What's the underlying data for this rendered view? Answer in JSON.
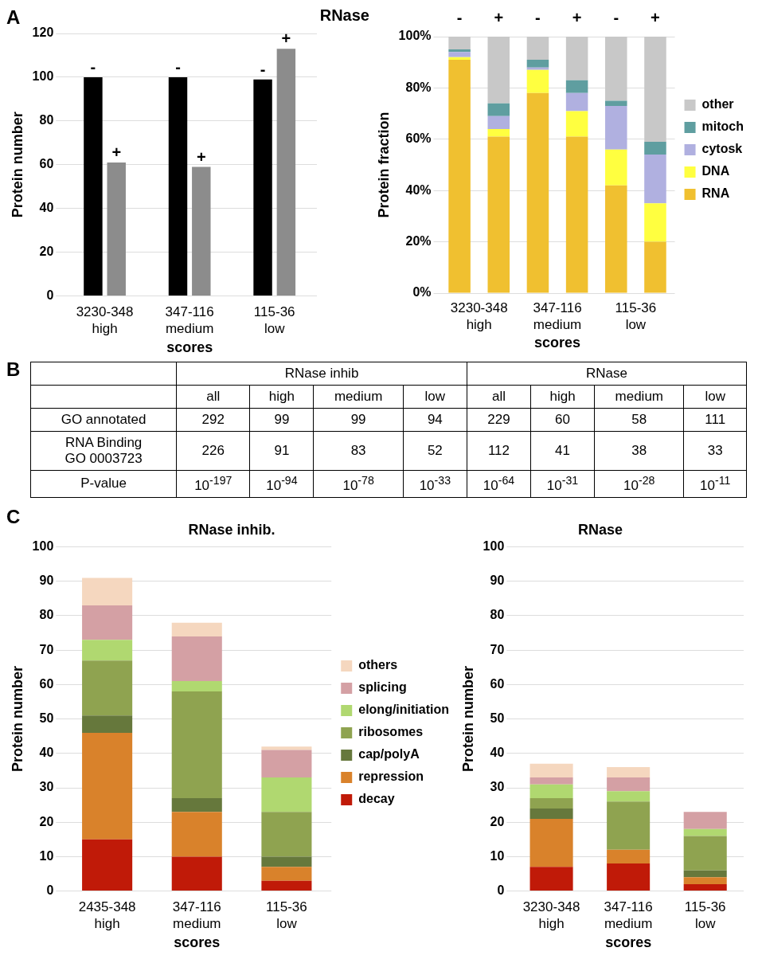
{
  "chart_data": [
    {
      "type": "bar",
      "ylabel": "Protein number",
      "xlabel": "scores",
      "legend_title": "RNase",
      "annotations": [
        "A"
      ],
      "categories": [
        "3230-348\nhigh",
        "347-116\nmedium",
        "115-36\nlow"
      ],
      "ylim": [
        0,
        120
      ],
      "yticks": [
        0,
        20,
        40,
        60,
        80,
        100,
        120
      ],
      "grid": "y",
      "series": [
        {
          "name": "-",
          "color": "#000000",
          "values": [
            100,
            100,
            99
          ]
        },
        {
          "name": "+",
          "color": "#8c8c8c",
          "values": [
            61,
            59,
            113
          ]
        }
      ]
    },
    {
      "type": "bar",
      "stacked": true,
      "ylabel": "Protein fraction",
      "xlabel": "scores",
      "annotations": [
        "3230-348\nhigh",
        "347-116\nmedium",
        "115-36\nlow"
      ],
      "categories": [
        "-",
        "+",
        "-",
        "+",
        "-",
        "+"
      ],
      "ylim": [
        0,
        100
      ],
      "yticks": [
        {
          "value": 0,
          "label": "0%"
        },
        {
          "value": 20,
          "label": "20%"
        },
        {
          "value": 40,
          "label": "40%"
        },
        {
          "value": 60,
          "label": "60%"
        },
        {
          "value": 80,
          "label": "80%"
        },
        {
          "value": 100,
          "label": "100%"
        }
      ],
      "grid": "y",
      "legend": "right",
      "series": [
        {
          "name": "RNA",
          "color": "#f0c030",
          "values": [
            91,
            61,
            78,
            61,
            42,
            20
          ]
        },
        {
          "name": "DNA",
          "color": "#ffff40",
          "values": [
            1,
            3,
            9,
            10,
            14,
            15
          ]
        },
        {
          "name": "cytosk",
          "color": "#b0b0e0",
          "values": [
            2,
            5,
            1,
            7,
            17,
            19
          ]
        },
        {
          "name": "mitoch",
          "color": "#5f9ea0",
          "values": [
            1,
            5,
            3,
            5,
            2,
            5
          ]
        },
        {
          "name": "other",
          "color": "#c8c8c8",
          "values": [
            5,
            26,
            9,
            17,
            25,
            41
          ]
        }
      ]
    },
    {
      "type": "other",
      "annotations": [
        "B",
        "RNase inhib",
        "RNase",
        "all",
        "high",
        "medium",
        "low",
        "all",
        "high",
        "medium",
        "low",
        "GO annotated",
        "292",
        "99",
        "99",
        "94",
        "229",
        "60",
        "58",
        "111",
        "RNA Binding\nGO 0003723",
        "226",
        "91",
        "83",
        "52",
        "112",
        "41",
        "38",
        "33",
        "P-value",
        "10$^{-197}$",
        "10$^{-94}$",
        "10$^{-78}$",
        "10$^{-33}$",
        "10$^{-64}$",
        "10$^{-31}$",
        "10$^{-28}$",
        "10$^{-11}$"
      ]
    },
    {
      "type": "bar",
      "stacked": true,
      "title": "RNase inhib.",
      "ylabel": "Protein number",
      "xlabel": "scores",
      "annotations": [
        "C"
      ],
      "categories": [
        "2435-348\nhigh",
        "347-116\nmedium",
        "115-36\nlow"
      ],
      "ylim": [
        0,
        100
      ],
      "yticks": [
        0,
        10,
        20,
        30,
        40,
        50,
        60,
        70,
        80,
        90,
        100
      ],
      "grid": "y",
      "legend": "right",
      "series": [
        {
          "name": "decay",
          "color": "#c01a08",
          "values": [
            15,
            10,
            3
          ]
        },
        {
          "name": "repression",
          "color": "#d9822b",
          "values": [
            31,
            13,
            4
          ]
        },
        {
          "name": "cap/polyA",
          "color": "#66783c",
          "values": [
            5,
            4,
            3
          ]
        },
        {
          "name": "ribosomes",
          "color": "#8fa350",
          "values": [
            16,
            31,
            13
          ]
        },
        {
          "name": "elong/initiation",
          "color": "#b0d870",
          "values": [
            6,
            3,
            10
          ]
        },
        {
          "name": "splicing",
          "color": "#d4a0a4",
          "values": [
            10,
            13,
            8
          ]
        },
        {
          "name": "others",
          "color": "#f5d7bf",
          "values": [
            8,
            4,
            1
          ]
        }
      ]
    },
    {
      "type": "bar",
      "stacked": true,
      "title": "RNase",
      "ylabel": "Protein number",
      "xlabel": "scores",
      "categories": [
        "3230-348\nhigh",
        "347-116\nmedium",
        "115-36\nlow"
      ],
      "ylim": [
        0,
        100
      ],
      "yticks": [
        0,
        10,
        20,
        30,
        40,
        50,
        60,
        70,
        80,
        90,
        100
      ],
      "grid": "y",
      "series": [
        {
          "color": "#c01a08",
          "values": [
            7,
            8,
            2
          ]
        },
        {
          "color": "#d9822b",
          "values": [
            14,
            4,
            2
          ]
        },
        {
          "color": "#66783c",
          "values": [
            3,
            0,
            2
          ]
        },
        {
          "color": "#8fa350",
          "values": [
            3,
            14,
            10
          ]
        },
        {
          "color": "#b0d870",
          "values": [
            4,
            3,
            2
          ]
        },
        {
          "color": "#d4a0a4",
          "values": [
            2,
            4,
            5
          ]
        },
        {
          "color": "#f5d7bf",
          "values": [
            4,
            3,
            0
          ]
        }
      ]
    }
  ]
}
